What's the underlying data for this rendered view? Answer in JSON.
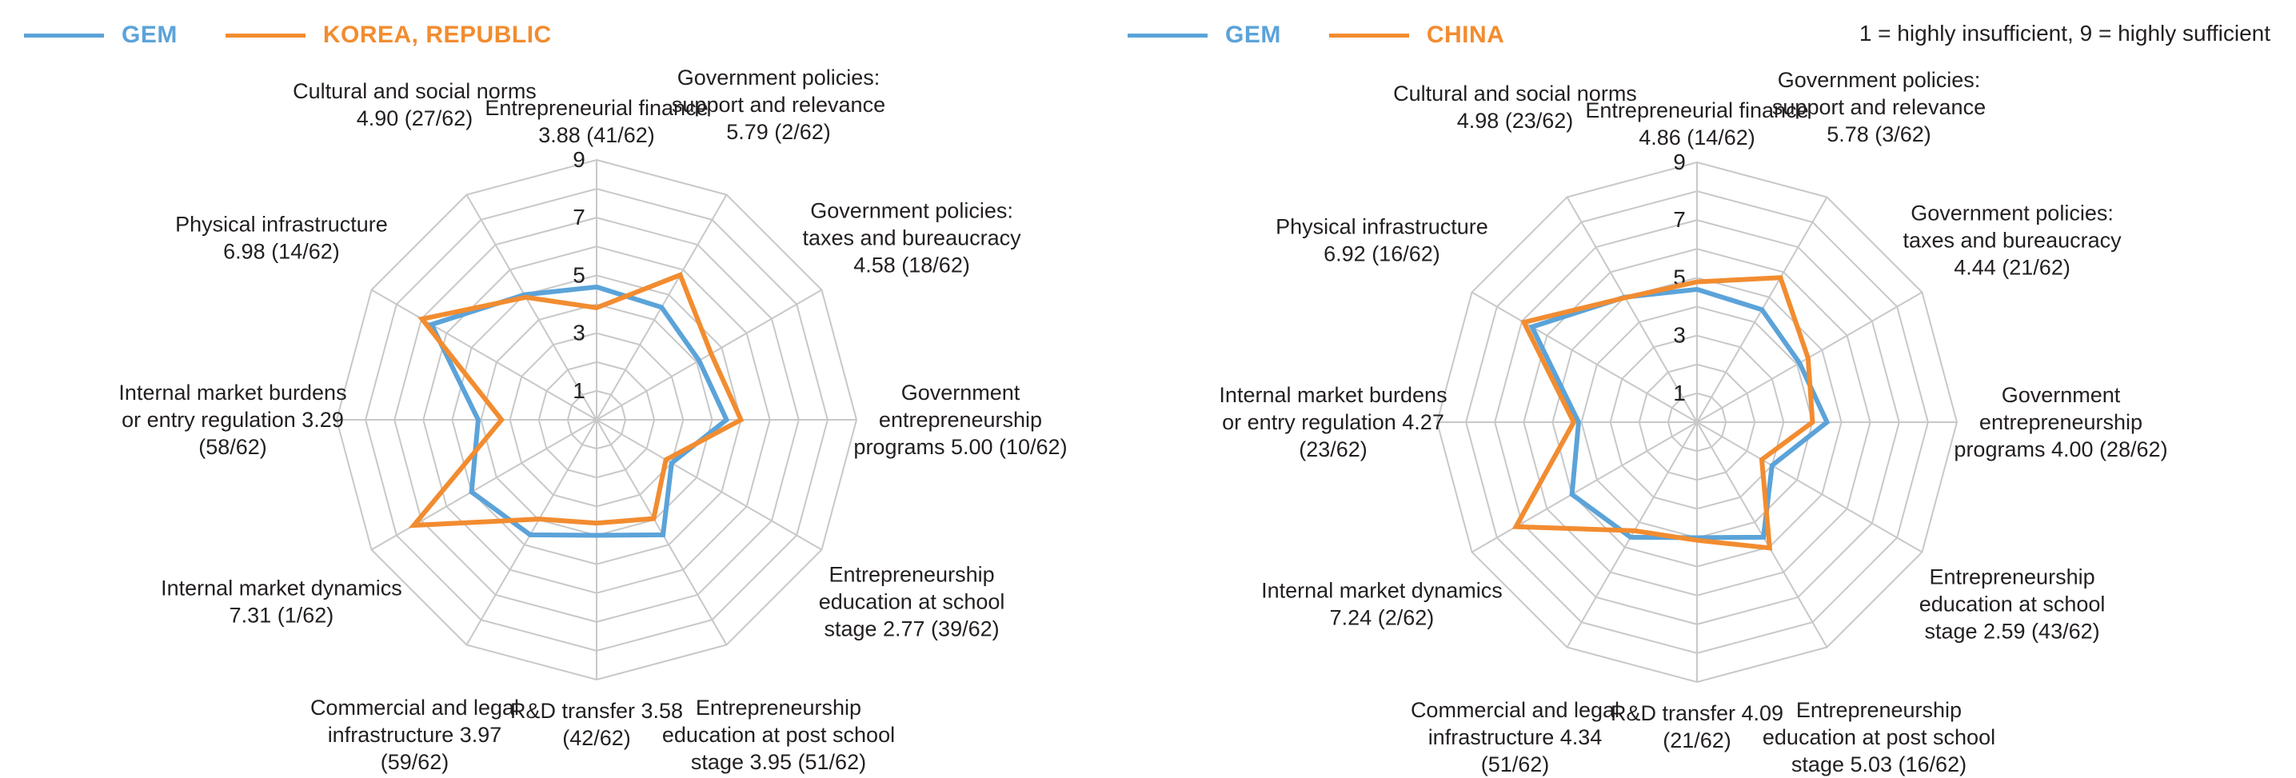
{
  "note": "1 = highly insufficient,  9 = highly sufficient",
  "chart_data": [
    {
      "type": "radar",
      "rlim": [
        0,
        9
      ],
      "ticks": [
        "1",
        "3",
        "5",
        "7",
        "9"
      ],
      "legend": [
        {
          "name": "GEM",
          "color": "#5ba3d9"
        },
        {
          "name": "KOREA, REPUBLIC",
          "color": "#f28c30"
        }
      ],
      "axes": [
        {
          "lines": [
            "Entrepreneurial finance",
            "3.88 (41/62)"
          ]
        },
        {
          "lines": [
            "Government policies:",
            "support and relevance",
            "5.79 (2/62)"
          ]
        },
        {
          "lines": [
            "Government policies:",
            "taxes and bureaucracy",
            "4.58 (18/62)"
          ]
        },
        {
          "lines": [
            "Government",
            "entrepreneurship",
            "programs 5.00 (10/62)"
          ]
        },
        {
          "lines": [
            "Entrepreneurship",
            "education at school",
            "stage 2.77 (39/62)"
          ]
        },
        {
          "lines": [
            "Entrepreneurship",
            "education at post school",
            "stage 3.95 (51/62)"
          ]
        },
        {
          "lines": [
            "R&D transfer 3.58",
            "(42/62)"
          ]
        },
        {
          "lines": [
            "Commercial and legal",
            "infrastructure 3.97",
            "(59/62)"
          ]
        },
        {
          "lines": [
            "Internal market dynamics",
            "7.31 (1/62)"
          ]
        },
        {
          "lines": [
            "Internal market burdens",
            "or entry regulation 3.29",
            "(58/62)"
          ]
        },
        {
          "lines": [
            "Physical infrastructure",
            "6.98 (14/62)"
          ]
        },
        {
          "lines": [
            "Cultural and social norms",
            "4.90 (27/62)"
          ]
        }
      ],
      "series": [
        {
          "name": "GEM",
          "color": "#5ba3d9",
          "values": [
            4.6,
            4.5,
            4.1,
            4.5,
            3.0,
            4.6,
            4.0,
            4.6,
            5.0,
            4.1,
            6.6,
            5.0
          ]
        },
        {
          "name": "KOREA, REPUBLIC",
          "color": "#f28c30",
          "values": [
            3.88,
            5.79,
            4.58,
            5.0,
            2.77,
            3.95,
            3.58,
            3.97,
            7.31,
            3.29,
            6.98,
            4.9
          ]
        }
      ]
    },
    {
      "type": "radar",
      "rlim": [
        0,
        9
      ],
      "ticks": [
        "1",
        "3",
        "5",
        "7",
        "9"
      ],
      "legend": [
        {
          "name": "GEM",
          "color": "#5ba3d9"
        },
        {
          "name": "CHINA",
          "color": "#f28c30"
        }
      ],
      "axes": [
        {
          "lines": [
            "Entrepreneurial finance",
            "4.86 (14/62)"
          ]
        },
        {
          "lines": [
            "Government policies:",
            "support and relevance",
            "5.78 (3/62)"
          ]
        },
        {
          "lines": [
            "Government policies:",
            "taxes and bureaucracy",
            "4.44 (21/62)"
          ]
        },
        {
          "lines": [
            "Government",
            "entrepreneurship",
            "programs 4.00 (28/62)"
          ]
        },
        {
          "lines": [
            "Entrepreneurship",
            "education at school",
            "stage 2.59 (43/62)"
          ]
        },
        {
          "lines": [
            "Entrepreneurship",
            "education at post school",
            "stage 5.03 (16/62)"
          ]
        },
        {
          "lines": [
            "R&D transfer 4.09",
            "(21/62)"
          ]
        },
        {
          "lines": [
            "Commercial and legal",
            "infrastructure 4.34",
            "(51/62)"
          ]
        },
        {
          "lines": [
            "Internal market dynamics",
            "7.24 (2/62)"
          ]
        },
        {
          "lines": [
            "Internal market burdens",
            "or entry regulation 4.27",
            "(23/62)"
          ]
        },
        {
          "lines": [
            "Physical infrastructure",
            "6.92 (16/62)"
          ]
        },
        {
          "lines": [
            "Cultural and social norms",
            "4.98 (23/62)"
          ]
        }
      ],
      "series": [
        {
          "name": "GEM",
          "color": "#5ba3d9",
          "values": [
            4.6,
            4.5,
            4.1,
            4.5,
            3.0,
            4.6,
            4.0,
            4.6,
            5.0,
            4.1,
            6.6,
            5.0
          ]
        },
        {
          "name": "CHINA",
          "color": "#f28c30",
          "values": [
            4.86,
            5.78,
            4.44,
            4.0,
            2.59,
            5.03,
            4.09,
            4.34,
            7.24,
            4.27,
            6.92,
            4.98
          ]
        }
      ]
    }
  ]
}
